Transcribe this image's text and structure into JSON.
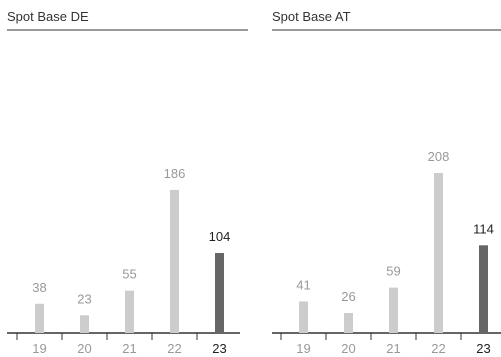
{
  "colors": {
    "bar_past": "#cccccc",
    "bar_current": "#666666",
    "label_past": "#999999",
    "label_current": "#222222",
    "axis": "#333333",
    "title_rule": "#333333"
  },
  "chart_data": [
    {
      "type": "bar",
      "title": "Spot Base DE",
      "xlabel": "",
      "ylabel": "",
      "categories": [
        "19",
        "20",
        "21",
        "22",
        "23"
      ],
      "values": [
        38,
        23,
        55,
        186,
        104
      ],
      "highlight_index": 4,
      "ylim": [
        0,
        260
      ],
      "grid": false,
      "legend": "none"
    },
    {
      "type": "bar",
      "title": "Spot Base AT",
      "xlabel": "",
      "ylabel": "",
      "categories": [
        "19",
        "20",
        "21",
        "22",
        "23"
      ],
      "values": [
        41,
        26,
        59,
        208,
        114
      ],
      "highlight_index": 4,
      "ylim": [
        0,
        260
      ],
      "grid": false,
      "legend": "none"
    }
  ]
}
